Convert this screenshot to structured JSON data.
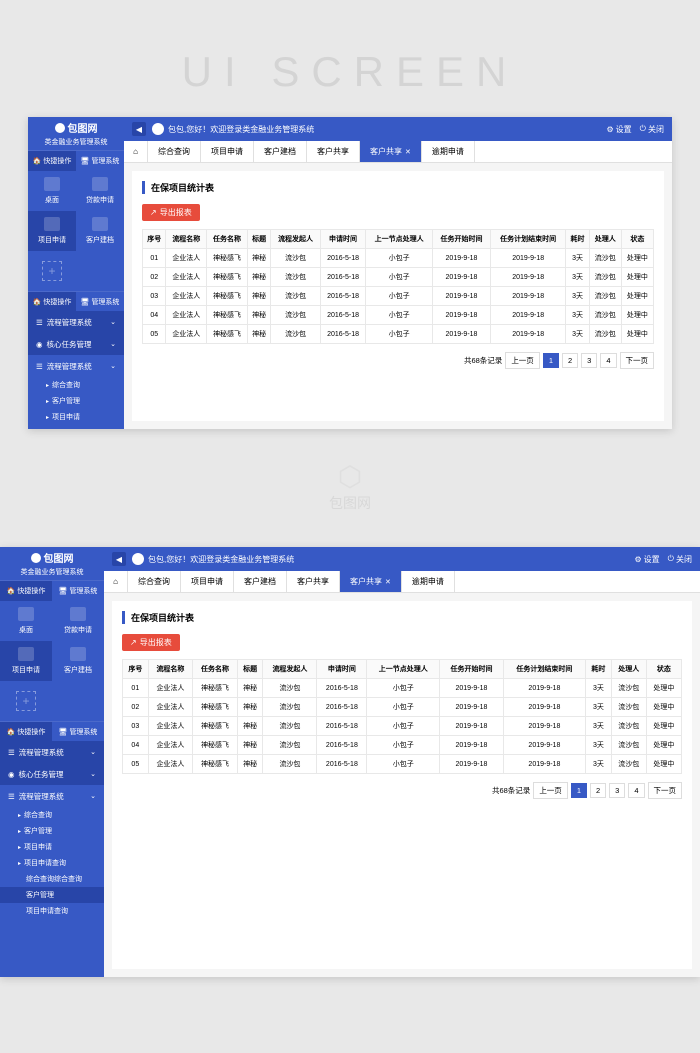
{
  "watermark": {
    "title": "UI SCREEN",
    "center_text": "包图网"
  },
  "brand": {
    "name": "包图网",
    "subtitle": "类金融业务管理系统"
  },
  "topbar": {
    "greeting": "包包,您好！欢迎登录类金融业务管理系统",
    "settings": "设置",
    "close": "关闭"
  },
  "sidebar": {
    "toggles": [
      {
        "label": "快捷操作"
      },
      {
        "label": "管理系统"
      }
    ],
    "quick_items": [
      {
        "label": "桌面"
      },
      {
        "label": "贷款申请"
      },
      {
        "label": "项目申请"
      },
      {
        "label": "客户建档"
      }
    ],
    "nav": [
      {
        "label": "流程管理系统",
        "icon": "flow"
      },
      {
        "label": "核心任务管理",
        "icon": "task"
      },
      {
        "label": "流程管理系统",
        "icon": "flow",
        "expanded": true
      }
    ],
    "subs1": [
      "综合查询",
      "客户管理",
      "项目申请"
    ],
    "subs2": [
      "综合查询",
      "客户管理",
      "项目申请",
      "项目申请查询"
    ],
    "subs2_nested": [
      "综合查询综合查询",
      "客户管理",
      "项目申请查询"
    ]
  },
  "tabs": [
    {
      "label": "综合查询"
    },
    {
      "label": "项目申请"
    },
    {
      "label": "客户建档"
    },
    {
      "label": "客户共享"
    },
    {
      "label": "客户共享",
      "active": true,
      "closable": true
    },
    {
      "label": "逾期申请"
    }
  ],
  "panel": {
    "title": "在保项目统计表",
    "export_label": "导出报表",
    "columns": [
      "序号",
      "流程名称",
      "任务名称",
      "标题",
      "流程发起人",
      "申请时间",
      "上一节点处理人",
      "任务开始时间",
      "任务计划结束时间",
      "耗时",
      "处理人",
      "状态"
    ],
    "rows": [
      [
        "01",
        "企业法人",
        "神秘感飞",
        "神秘",
        "流沙包",
        "2016-5-18",
        "小包子",
        "2019-9-18",
        "2019-9-18",
        "3天",
        "流沙包",
        "处理中"
      ],
      [
        "02",
        "企业法人",
        "神秘感飞",
        "神秘",
        "流沙包",
        "2016-5-18",
        "小包子",
        "2019-9-18",
        "2019-9-18",
        "3天",
        "流沙包",
        "处理中"
      ],
      [
        "03",
        "企业法人",
        "神秘感飞",
        "神秘",
        "流沙包",
        "2016-5-18",
        "小包子",
        "2019-9-18",
        "2019-9-18",
        "3天",
        "流沙包",
        "处理中"
      ],
      [
        "04",
        "企业法人",
        "神秘感飞",
        "神秘",
        "流沙包",
        "2016-5-18",
        "小包子",
        "2019-9-18",
        "2019-9-18",
        "3天",
        "流沙包",
        "处理中"
      ],
      [
        "05",
        "企业法人",
        "神秘感飞",
        "神秘",
        "流沙包",
        "2016-5-18",
        "小包子",
        "2019-9-18",
        "2019-9-18",
        "3天",
        "流沙包",
        "处理中"
      ]
    ],
    "pagination": {
      "total": "共68条记录",
      "prev": "上一页",
      "next": "下一页",
      "pages": [
        "1",
        "2",
        "3",
        "4"
      ],
      "active": 0
    }
  },
  "colors": {
    "primary": "#3759c5",
    "primary_dark": "#2845a8",
    "danger": "#e74c3c"
  }
}
